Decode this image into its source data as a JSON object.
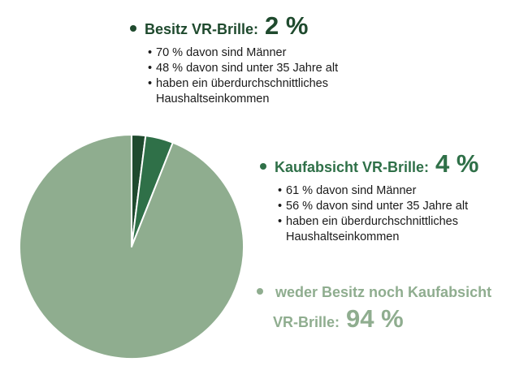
{
  "chart_data": {
    "type": "pie",
    "slices": [
      {
        "label": "Besitz VR-Brille:",
        "value": 2,
        "value_label": "2 %",
        "color": "#1f4a2e",
        "bullets": [
          "70 % davon sind Männer",
          "48 % davon sind unter 35 Jahre alt",
          "haben ein überdurchschnittliches Haushaltseinkommen"
        ]
      },
      {
        "label": "Kaufabsicht VR-Brille:",
        "value": 4,
        "value_label": "4 %",
        "color": "#2f7048",
        "bullets": [
          "61 % davon sind Männer",
          "56 % davon sind unter 35 Jahre alt",
          "haben ein überdurchschnittliches Haushaltseinkommen"
        ]
      },
      {
        "label_line1": "weder Besitz noch Kaufabsicht",
        "label_line2": "VR-Brille:",
        "value": 94,
        "value_label": "94 %",
        "color": "#8fad8f"
      }
    ]
  }
}
